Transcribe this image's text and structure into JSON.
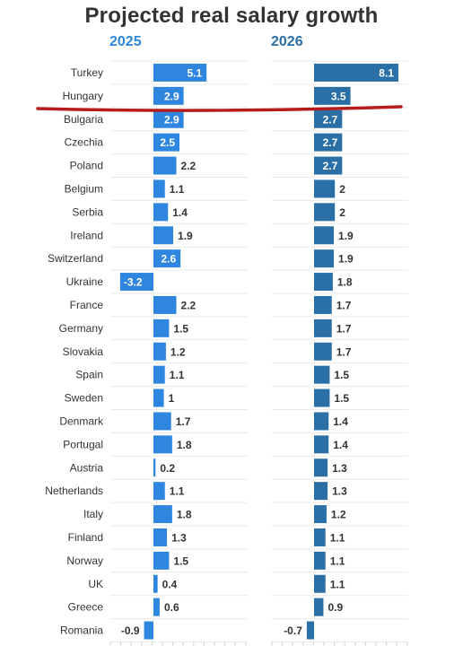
{
  "chart_data": {
    "type": "bar",
    "title": "Projected real salary growth",
    "categories": [
      "Turkey",
      "Hungary",
      "Bulgaria",
      "Czechia",
      "Poland",
      "Belgium",
      "Serbia",
      "Ireland",
      "Switzerland",
      "Ukraine",
      "France",
      "Germany",
      "Slovakia",
      "Spain",
      "Sweden",
      "Denmark",
      "Portugal",
      "Austria",
      "Netherlands",
      "Italy",
      "Finland",
      "Norway",
      "UK",
      "Greece",
      "Romania"
    ],
    "series": [
      {
        "name": "2025",
        "color": "#2f86df",
        "values": [
          5.1,
          2.9,
          2.9,
          2.5,
          2.2,
          1.1,
          1.4,
          1.9,
          2.6,
          -3.2,
          2.2,
          1.5,
          1.2,
          1.1,
          1,
          1.7,
          1.8,
          0.2,
          1.1,
          1.8,
          1.3,
          1.5,
          0.4,
          0.6,
          -0.9
        ]
      },
      {
        "name": "2026",
        "color": "#2a6fa6",
        "values": [
          8.1,
          3.5,
          2.7,
          2.7,
          2.7,
          2,
          2,
          1.9,
          1.9,
          1.8,
          1.7,
          1.7,
          1.7,
          1.5,
          1.5,
          1.4,
          1.4,
          1.3,
          1.3,
          1.2,
          1.1,
          1.1,
          1.1,
          0.9,
          -0.7
        ]
      }
    ],
    "orientation": "horizontal",
    "grid": true,
    "annotation": {
      "type": "red-line",
      "color": "#b71c1c",
      "between": [
        "Hungary",
        "Bulgaria"
      ]
    }
  }
}
